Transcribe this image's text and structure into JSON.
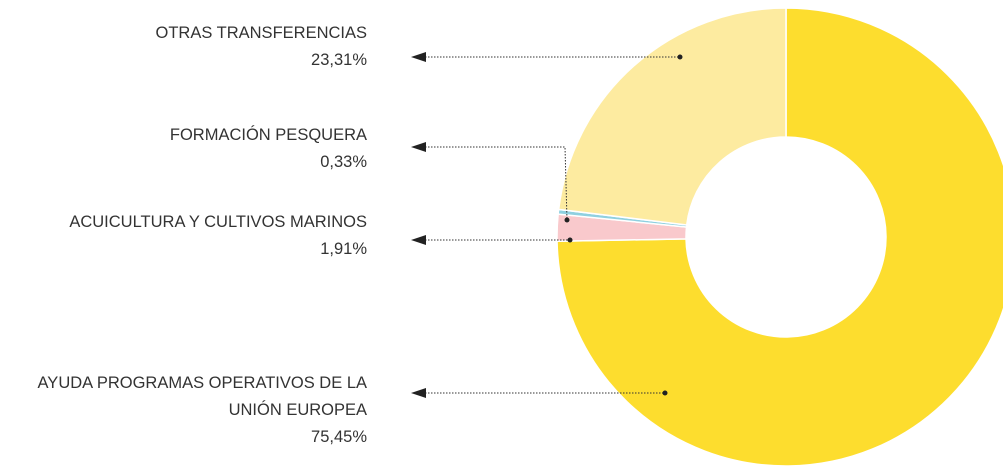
{
  "chart_data": {
    "type": "donut",
    "categories": [
      "AYUDA PROGRAMAS OPERATIVOS DE LA UNIÓN EUROPEA",
      "ACUICULTURA Y CULTIVOS MARINOS",
      "FORMACIÓN PESQUERA",
      "OTRAS TRANSFERENCIAS"
    ],
    "values": [
      75.45,
      1.91,
      0.33,
      23.31
    ],
    "value_labels": [
      "75,45%",
      "1,91%",
      "0,33%",
      "23,31%"
    ],
    "colors": [
      "#fddd2e",
      "#f9c9cc",
      "#8fd0e0",
      "#fdeba0"
    ]
  }
}
